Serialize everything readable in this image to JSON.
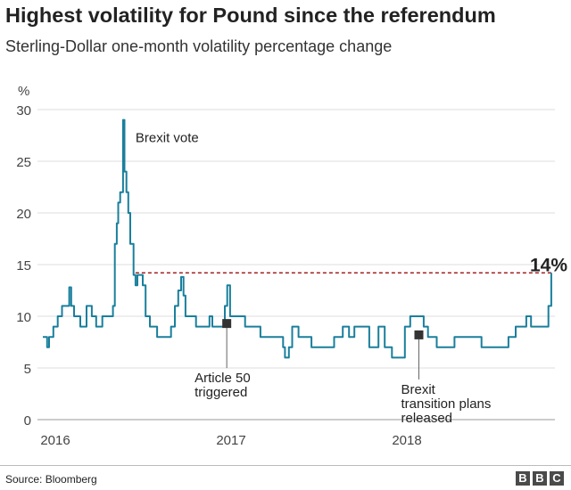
{
  "title": "Highest volatility for Pound since the referendum",
  "subtitle": "Sterling-Dollar one-month volatility percentage change",
  "source": "Source: Bloomberg",
  "logo_text": "BBC",
  "chart_data": {
    "type": "line",
    "title": "Highest volatility for Pound since the referendum",
    "subtitle": "Sterling-Dollar one-month volatility percentage change",
    "ylabel": "%",
    "ylim": [
      0,
      30
    ],
    "yticks": [
      0,
      5,
      10,
      15,
      20,
      25,
      30
    ],
    "xticks": [
      "2016",
      "2017",
      "2018"
    ],
    "grid": true,
    "line_color": "#1a7f9c",
    "reference_line": {
      "value": 14.2,
      "label": "14%",
      "color": "#a32121",
      "from": "2016-06-16"
    },
    "annotations": [
      {
        "label": "Brexit vote",
        "date": "2016-05-21",
        "value": 29
      },
      {
        "label": "Article 50\ntriggered",
        "date": "2016-12-23",
        "value": 9.3
      },
      {
        "label": "Brexit\ntransition plans\nreleased",
        "date": "2018-01-26",
        "value": 8.2
      }
    ],
    "series": [
      {
        "points": [
          [
            "2015-12-06",
            8
          ],
          [
            "2015-12-15",
            7
          ],
          [
            "2015-12-19",
            8
          ],
          [
            "2015-12-28",
            9
          ],
          [
            "2016-01-06",
            10
          ],
          [
            "2016-01-15",
            11
          ],
          [
            "2016-01-30",
            12.8
          ],
          [
            "2016-02-03",
            11
          ],
          [
            "2016-02-09",
            10
          ],
          [
            "2016-02-22",
            9
          ],
          [
            "2016-03-06",
            11
          ],
          [
            "2016-03-17",
            10
          ],
          [
            "2016-03-26",
            9
          ],
          [
            "2016-04-08",
            10
          ],
          [
            "2016-04-27",
            10
          ],
          [
            "2016-04-30",
            11
          ],
          [
            "2016-05-04",
            17
          ],
          [
            "2016-05-08",
            19
          ],
          [
            "2016-05-11",
            21
          ],
          [
            "2016-05-15",
            22
          ],
          [
            "2016-05-21",
            29
          ],
          [
            "2016-05-24",
            24
          ],
          [
            "2016-05-28",
            22
          ],
          [
            "2016-06-01",
            20
          ],
          [
            "2016-06-05",
            17
          ],
          [
            "2016-06-12",
            14
          ],
          [
            "2016-06-16",
            13
          ],
          [
            "2016-06-20",
            14
          ],
          [
            "2016-07-01",
            13
          ],
          [
            "2016-07-07",
            10
          ],
          [
            "2016-07-16",
            9
          ],
          [
            "2016-07-31",
            8
          ],
          [
            "2016-08-16",
            8
          ],
          [
            "2016-08-29",
            9
          ],
          [
            "2016-09-06",
            11
          ],
          [
            "2016-09-13",
            12.5
          ],
          [
            "2016-09-19",
            13.8
          ],
          [
            "2016-09-24",
            12
          ],
          [
            "2016-09-28",
            10
          ],
          [
            "2016-10-20",
            9
          ],
          [
            "2016-11-17",
            10
          ],
          [
            "2016-11-23",
            9
          ],
          [
            "2016-12-15",
            9
          ],
          [
            "2016-12-19",
            11
          ],
          [
            "2016-12-24",
            13
          ],
          [
            "2016-12-30",
            10
          ],
          [
            "2017-01-21",
            10
          ],
          [
            "2017-01-30",
            9
          ],
          [
            "2017-02-27",
            9
          ],
          [
            "2017-03-03",
            8
          ],
          [
            "2017-04-05",
            8
          ],
          [
            "2017-04-19",
            7
          ],
          [
            "2017-04-23",
            6
          ],
          [
            "2017-05-01",
            7
          ],
          [
            "2017-05-08",
            9
          ],
          [
            "2017-05-21",
            8
          ],
          [
            "2017-06-08",
            8
          ],
          [
            "2017-06-17",
            7
          ],
          [
            "2017-07-28",
            7
          ],
          [
            "2017-08-03",
            8
          ],
          [
            "2017-08-21",
            9
          ],
          [
            "2017-09-03",
            8
          ],
          [
            "2017-09-14",
            9
          ],
          [
            "2017-10-10",
            9
          ],
          [
            "2017-10-15",
            7
          ],
          [
            "2017-10-25",
            7
          ],
          [
            "2017-11-03",
            9
          ],
          [
            "2017-11-16",
            7
          ],
          [
            "2017-11-23",
            7
          ],
          [
            "2017-12-01",
            6
          ],
          [
            "2017-12-19",
            6
          ],
          [
            "2017-12-28",
            9
          ],
          [
            "2018-01-08",
            10
          ],
          [
            "2018-01-23",
            10
          ],
          [
            "2018-02-05",
            9
          ],
          [
            "2018-02-14",
            8
          ],
          [
            "2018-03-04",
            7
          ],
          [
            "2018-03-23",
            7
          ],
          [
            "2018-04-10",
            8
          ],
          [
            "2018-04-19",
            8
          ],
          [
            "2018-06-05",
            7
          ],
          [
            "2018-07-31",
            8
          ],
          [
            "2018-08-15",
            9
          ],
          [
            "2018-08-28",
            9
          ],
          [
            "2018-09-06",
            10
          ],
          [
            "2018-09-16",
            9
          ],
          [
            "2018-10-17",
            9
          ],
          [
            "2018-10-22",
            11
          ],
          [
            "2018-10-28",
            14.2
          ]
        ]
      }
    ]
  }
}
